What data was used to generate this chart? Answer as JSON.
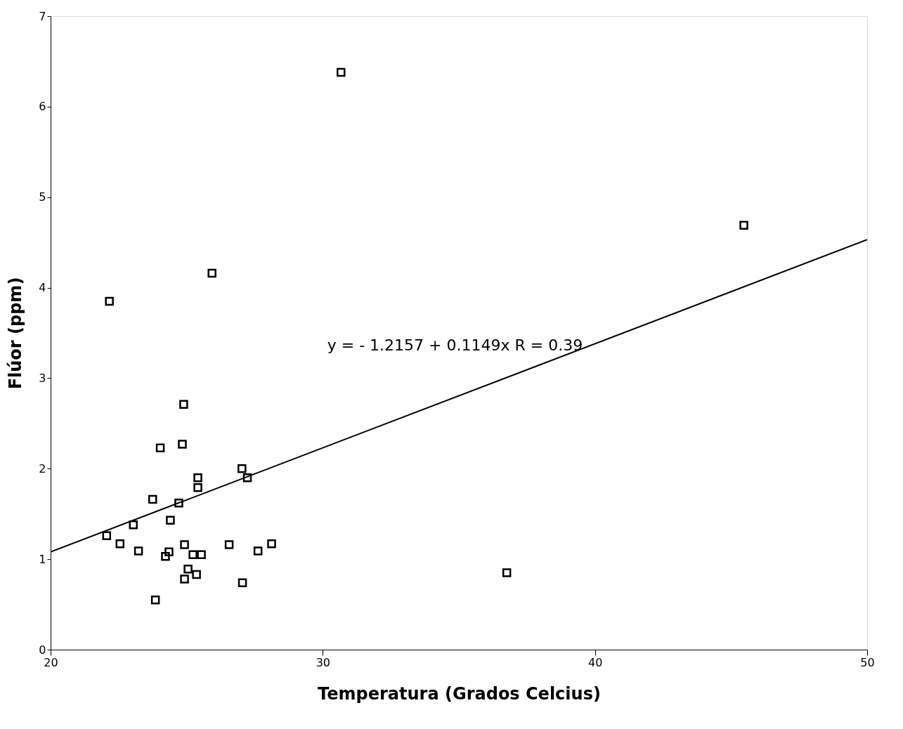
{
  "chart_data": {
    "type": "scatter",
    "xlabel": "Temperatura (Grados Celcius)",
    "ylabel": "Flúor (ppm)",
    "xlim": [
      20,
      50
    ],
    "xticks": [
      20,
      30,
      40,
      50
    ],
    "ylim": [
      0,
      7
    ],
    "yticks": [
      {
        "value": 0,
        "label": "0"
      },
      {
        "value": 1,
        "label": "1"
      },
      {
        "value": 2,
        "label": "2"
      },
      {
        "value": 3,
        "label": "3"
      },
      {
        "value": 4,
        "label": "4"
      },
      {
        "value": 5,
        "label": "5"
      },
      {
        "value": 6,
        "label": "6"
      },
      {
        "value": 7,
        "label": "7"
      }
    ],
    "grid": false,
    "annotations": [
      "y = - 1.2157 + 0.1149x   R = 0.39"
    ],
    "series": [
      {
        "color": "#000000",
        "marker": "square",
        "x": [
          22.06,
          22.55,
          23.04,
          23.23,
          23.75,
          23.85,
          24.03,
          24.22,
          24.35,
          24.4,
          24.71,
          24.84,
          24.89,
          24.92,
          24.92,
          25.05,
          25.23,
          25.36,
          25.41,
          25.41,
          25.54,
          25.93,
          26.56,
          27.03,
          27.05,
          27.23,
          27.62,
          28.12,
          22.16,
          30.67,
          36.76,
          45.47
        ],
        "values": [
          1.26,
          1.17,
          1.38,
          1.09,
          1.66,
          0.55,
          2.23,
          1.03,
          1.08,
          1.43,
          1.62,
          2.27,
          2.71,
          1.16,
          0.78,
          0.89,
          1.05,
          0.83,
          1.9,
          1.79,
          1.05,
          4.16,
          1.16,
          2.0,
          0.74,
          1.9,
          1.09,
          1.17,
          3.85,
          6.38,
          0.85,
          4.69
        ]
      },
      {
        "type": "line",
        "color": "#000000",
        "line_style": "solid",
        "x": [
          20,
          50
        ],
        "values": [
          1.08,
          4.53
        ]
      }
    ]
  }
}
